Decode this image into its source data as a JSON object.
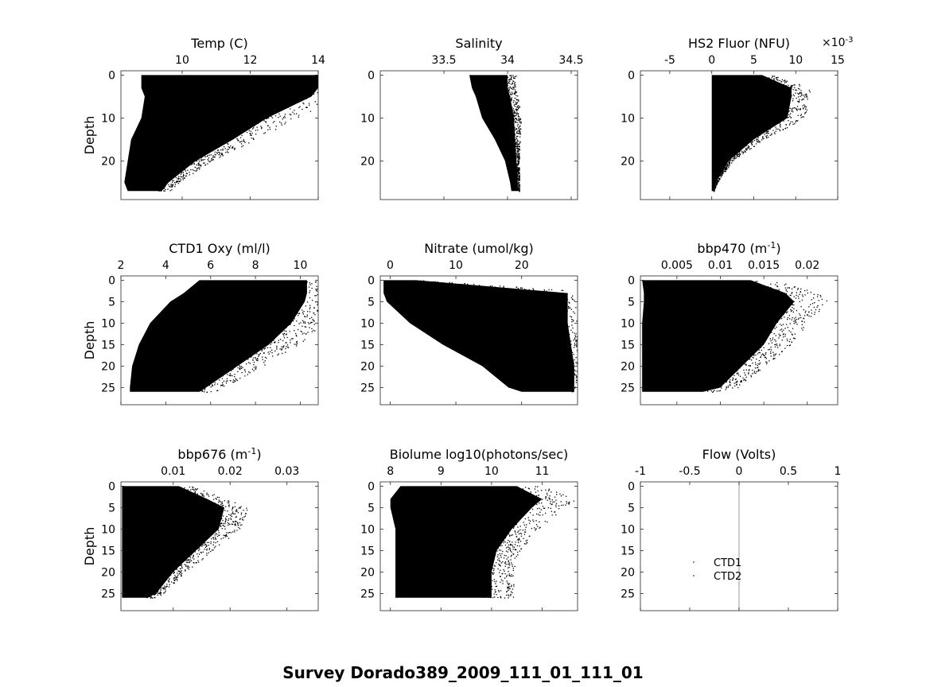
{
  "figure": {
    "title": "Survey Dorado389_2009_111_01_111_01"
  },
  "chart_data": [
    {
      "type": "scatter",
      "id": "temp",
      "title": "Temp (C)",
      "ylabel": "Depth",
      "xlim": [
        8.2,
        14
      ],
      "ylim": [
        29,
        -1
      ],
      "xticks": [
        10,
        12,
        14
      ],
      "xtick_labels": [
        "10",
        "12",
        "14"
      ],
      "yticks": [
        0,
        10,
        20
      ],
      "ytick_labels": [
        "0",
        "10",
        "20"
      ],
      "profile": {
        "depth": [
          0,
          3,
          5,
          10,
          15,
          20,
          25,
          27
        ],
        "low": [
          8.8,
          8.8,
          8.9,
          8.8,
          8.5,
          8.4,
          8.3,
          8.4
        ],
        "high": [
          14,
          14,
          13.8,
          12.5,
          11.5,
          10.4,
          9.6,
          9.4
        ]
      },
      "annotations": []
    },
    {
      "type": "scatter",
      "id": "salinity",
      "title": "Salinity",
      "ylabel": "",
      "xlim": [
        33.0,
        34.55
      ],
      "ylim": [
        29,
        -1
      ],
      "xticks": [
        33.5,
        34,
        34.5
      ],
      "xtick_labels": [
        "33.5",
        "34",
        "34.5"
      ],
      "yticks": [
        0,
        10,
        20
      ],
      "ytick_labels": [
        "0",
        "10",
        "20"
      ],
      "profile": {
        "depth": [
          0,
          3,
          5,
          10,
          15,
          20,
          25,
          27
        ],
        "low": [
          33.7,
          33.72,
          33.75,
          33.8,
          33.9,
          33.98,
          34.02,
          34.03
        ],
        "high": [
          34.0,
          34.0,
          34.02,
          34.05,
          34.06,
          34.07,
          34.08,
          34.08
        ]
      },
      "annotations": []
    },
    {
      "type": "scatter",
      "id": "fluor",
      "title": "HS2 Fluor (NFU)",
      "ylabel": "",
      "xlim": [
        -8.5,
        15
      ],
      "ylim": [
        29,
        -1
      ],
      "exponent_label": "×10",
      "exponent_value": "-3",
      "xticks": [
        -5,
        0,
        5,
        10,
        15
      ],
      "xtick_labels": [
        "-5",
        "0",
        "5",
        "10",
        "15"
      ],
      "yticks": [
        0,
        10,
        20
      ],
      "ytick_labels": [
        "0",
        "10",
        "20"
      ],
      "profile": {
        "depth": [
          0,
          3,
          5,
          10,
          15,
          20,
          25,
          27
        ],
        "low": [
          0,
          0,
          0,
          0,
          0,
          0,
          0,
          0
        ],
        "high": [
          6,
          9.5,
          9.5,
          9,
          5,
          2,
          0.5,
          0.2
        ]
      },
      "annotations": []
    },
    {
      "type": "scatter",
      "id": "oxy",
      "title": "CTD1 Oxy (ml/l)",
      "ylabel": "Depth",
      "xlim": [
        2,
        10.8
      ],
      "ylim": [
        29,
        -1
      ],
      "xticks": [
        2,
        4,
        6,
        8,
        10
      ],
      "xtick_labels": [
        "2",
        "4",
        "6",
        "8",
        "10"
      ],
      "yticks": [
        0,
        5,
        10,
        15,
        20,
        25
      ],
      "ytick_labels": [
        "0",
        "5",
        "10",
        "15",
        "20",
        "25"
      ],
      "profile": {
        "depth": [
          0,
          3,
          5,
          10,
          15,
          20,
          25,
          26
        ],
        "low": [
          5.5,
          4.8,
          4.2,
          3.3,
          2.8,
          2.5,
          2.4,
          2.4
        ],
        "high": [
          10.3,
          10.3,
          10.2,
          9.6,
          8.6,
          7.2,
          5.8,
          5.5
        ]
      },
      "annotations": []
    },
    {
      "type": "scatter",
      "id": "nitrate",
      "title": "Nitrate (umol/kg)",
      "ylabel": "",
      "xlim": [
        -1.5,
        28.5
      ],
      "ylim": [
        29,
        -1
      ],
      "xticks": [
        0,
        10,
        20
      ],
      "xtick_labels": [
        "0",
        "10",
        "20"
      ],
      "yticks": [
        0,
        5,
        10,
        15,
        20,
        25
      ],
      "ytick_labels": [
        "0",
        "5",
        "10",
        "15",
        "20",
        "25"
      ],
      "profile": {
        "depth": [
          0,
          3,
          5,
          10,
          15,
          20,
          25,
          26
        ],
        "low": [
          -1,
          -1,
          -0.5,
          3,
          8,
          14,
          18,
          20
        ],
        "high": [
          4,
          27,
          27,
          27,
          27.5,
          28,
          28,
          28
        ]
      },
      "annotations": []
    },
    {
      "type": "scatter",
      "id": "bbp470",
      "title": "bbp470 (m",
      "title_sup": "-1",
      "title_end": ")",
      "ylabel": "",
      "xlim": [
        0.0008,
        0.0235
      ],
      "ylim": [
        29,
        -1
      ],
      "xticks": [
        0.005,
        0.01,
        0.015,
        0.02
      ],
      "xtick_labels": [
        "0.005",
        "0.01",
        "0.015",
        "0.02"
      ],
      "yticks": [
        0,
        5,
        10,
        15,
        20,
        25
      ],
      "ytick_labels": [
        "0",
        "5",
        "10",
        "15",
        "20",
        "25"
      ],
      "profile": {
        "depth": [
          0,
          3,
          5,
          10,
          15,
          20,
          25,
          26
        ],
        "low": [
          0.001,
          0.0012,
          0.0012,
          0.001,
          0.001,
          0.001,
          0.001,
          0.001
        ],
        "high": [
          0.0135,
          0.0175,
          0.0185,
          0.0165,
          0.015,
          0.0125,
          0.01,
          0.008
        ]
      },
      "annotations": []
    },
    {
      "type": "scatter",
      "id": "bbp676",
      "title": "bbp676 (m",
      "title_sup": "-1",
      "title_end": ")",
      "ylabel": "Depth",
      "xlim": [
        0.0008,
        0.0355
      ],
      "ylim": [
        29,
        -1
      ],
      "xticks": [
        0.01,
        0.02,
        0.03
      ],
      "xtick_labels": [
        "0.01",
        "0.02",
        "0.03"
      ],
      "yticks": [
        0,
        5,
        10,
        15,
        20,
        25
      ],
      "ytick_labels": [
        "0",
        "5",
        "10",
        "15",
        "20",
        "25"
      ],
      "profile": {
        "depth": [
          0,
          3,
          5,
          10,
          15,
          20,
          25,
          26
        ],
        "low": [
          0.001,
          0.001,
          0.001,
          0.001,
          0.001,
          0.001,
          0.001,
          0.001
        ],
        "high": [
          0.011,
          0.016,
          0.019,
          0.018,
          0.014,
          0.01,
          0.007,
          0.0055
        ]
      },
      "annotations": []
    },
    {
      "type": "scatter",
      "id": "biolume",
      "title": "Biolume log10(photons/sec)",
      "ylabel": "",
      "xlim": [
        7.8,
        11.7
      ],
      "ylim": [
        29,
        -1
      ],
      "xticks": [
        8,
        9,
        10,
        11
      ],
      "xtick_labels": [
        "8",
        "9",
        "10",
        "11"
      ],
      "yticks": [
        0,
        5,
        10,
        15,
        20,
        25
      ],
      "ytick_labels": [
        "0",
        "5",
        "10",
        "15",
        "20",
        "25"
      ],
      "profile": {
        "depth": [
          0,
          3,
          5,
          10,
          15,
          20,
          25,
          26
        ],
        "low": [
          8.2,
          8.0,
          8.0,
          8.1,
          8.1,
          8.1,
          8.1,
          8.1
        ],
        "high": [
          10.5,
          11.0,
          10.8,
          10.4,
          10.1,
          10.0,
          10.0,
          10.0
        ]
      },
      "annotations": []
    },
    {
      "type": "line",
      "id": "flow",
      "title": "Flow (Volts)",
      "ylabel": "",
      "xlim": [
        -1,
        1
      ],
      "ylim": [
        29,
        -1
      ],
      "xticks": [
        -1,
        -0.5,
        0,
        0.5,
        1
      ],
      "xtick_labels": [
        "-1",
        "-0.5",
        "0",
        "0.5",
        "1"
      ],
      "yticks": [
        0,
        5,
        10,
        15,
        20,
        25
      ],
      "ytick_labels": [
        "0",
        "5",
        "10",
        "15",
        "20",
        "25"
      ],
      "series": [
        {
          "name": "zero line",
          "x": [
            0,
            0
          ],
          "y": [
            -1,
            29
          ],
          "color": "#aaaaaa"
        }
      ],
      "legend": {
        "entries": [
          "CTD1",
          "CTD2"
        ],
        "placement": "center-left"
      },
      "annotations": []
    }
  ]
}
